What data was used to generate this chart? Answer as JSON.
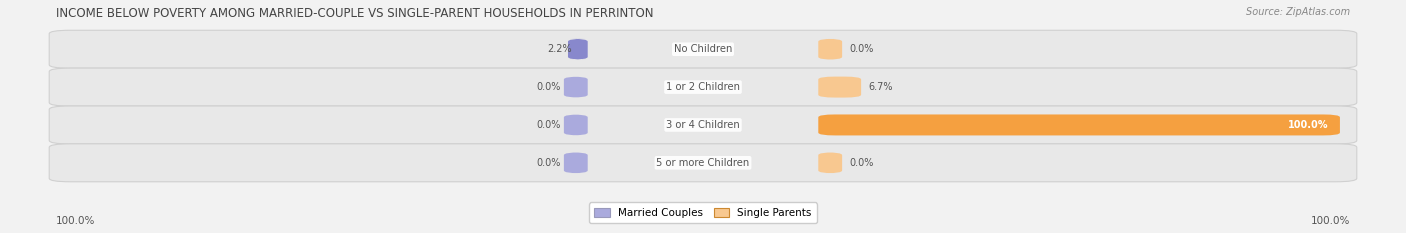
{
  "title": "INCOME BELOW POVERTY AMONG MARRIED-COUPLE VS SINGLE-PARENT HOUSEHOLDS IN PERRINTON",
  "source": "Source: ZipAtlas.com",
  "categories": [
    "No Children",
    "1 or 2 Children",
    "3 or 4 Children",
    "5 or more Children"
  ],
  "married_values": [
    2.2,
    0.0,
    0.0,
    0.0
  ],
  "single_values": [
    0.0,
    6.7,
    100.0,
    0.0
  ],
  "married_color": "#8888cc",
  "married_color_light": "#aaaadd",
  "single_color": "#f5a040",
  "single_color_light": "#f8c890",
  "bg_color": "#f2f2f2",
  "row_bg_color": "#e8e8e8",
  "row_edge_color": "#d0d0d0",
  "title_color": "#444444",
  "label_color": "#555555",
  "source_color": "#888888",
  "legend_married": "Married Couples",
  "legend_single": "Single Parents",
  "max_value": 100.0,
  "left_label": "100.0%",
  "right_label": "100.0%"
}
